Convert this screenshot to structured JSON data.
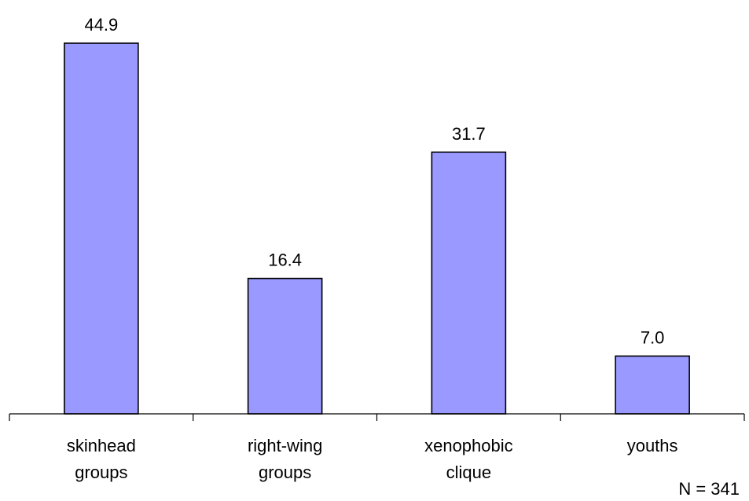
{
  "chart_data": {
    "type": "bar",
    "categories": [
      [
        "skinhead",
        "groups"
      ],
      [
        "right-wing",
        "groups"
      ],
      [
        "xenophobic",
        "clique"
      ],
      [
        "youths"
      ]
    ],
    "values": [
      44.9,
      16.4,
      31.7,
      7.0
    ],
    "value_labels": [
      "44.9",
      "16.4",
      "31.7",
      "7.0"
    ],
    "ylim": [
      0,
      50
    ],
    "bar_color": "#9999ff",
    "grid": false,
    "note": "N = 341"
  }
}
